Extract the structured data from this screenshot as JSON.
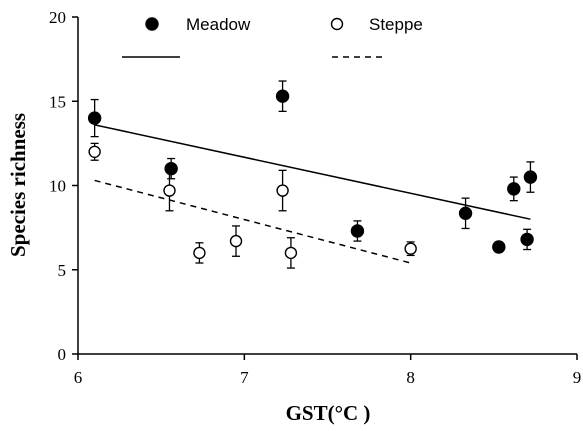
{
  "chart_data": {
    "type": "scatter",
    "xlabel": "GST(°C )",
    "ylabel": "Species richness",
    "xlim": [
      6,
      9
    ],
    "ylim": [
      0,
      20
    ],
    "xticks": [
      "6",
      "7",
      "8",
      "9"
    ],
    "yticks": [
      "0",
      "5",
      "10",
      "15",
      "20"
    ],
    "grid": false,
    "legend_position": "top",
    "series": [
      {
        "name": "Meadow",
        "marker": "filled-circle",
        "points": [
          {
            "x": 6.1,
            "y": 14.0,
            "err": 1.1
          },
          {
            "x": 6.56,
            "y": 11.0,
            "err": 0.6
          },
          {
            "x": 7.23,
            "y": 15.3,
            "err": 0.9
          },
          {
            "x": 7.68,
            "y": 7.3,
            "err": 0.6
          },
          {
            "x": 8.33,
            "y": 8.35,
            "err": 0.9
          },
          {
            "x": 8.53,
            "y": 6.35,
            "err": 0.3
          },
          {
            "x": 8.62,
            "y": 9.8,
            "err": 0.7
          },
          {
            "x": 8.7,
            "y": 6.8,
            "err": 0.6
          },
          {
            "x": 8.72,
            "y": 10.5,
            "err": 0.9
          }
        ],
        "trend": {
          "style": "solid",
          "x": [
            6.1,
            8.72
          ],
          "y": [
            13.6,
            8.0
          ]
        }
      },
      {
        "name": "Steppe",
        "marker": "open-circle",
        "points": [
          {
            "x": 6.1,
            "y": 12.0,
            "err": 0.5
          },
          {
            "x": 6.55,
            "y": 9.7,
            "err": 1.2
          },
          {
            "x": 6.73,
            "y": 6.0,
            "err": 0.6
          },
          {
            "x": 6.95,
            "y": 6.7,
            "err": 0.9
          },
          {
            "x": 7.23,
            "y": 9.7,
            "err": 1.2
          },
          {
            "x": 7.28,
            "y": 6.0,
            "err": 0.9
          },
          {
            "x": 8.0,
            "y": 6.25,
            "err": 0.4
          }
        ],
        "trend": {
          "style": "dashed",
          "x": [
            6.1,
            8.0
          ],
          "y": [
            10.3,
            5.4
          ]
        }
      }
    ]
  }
}
